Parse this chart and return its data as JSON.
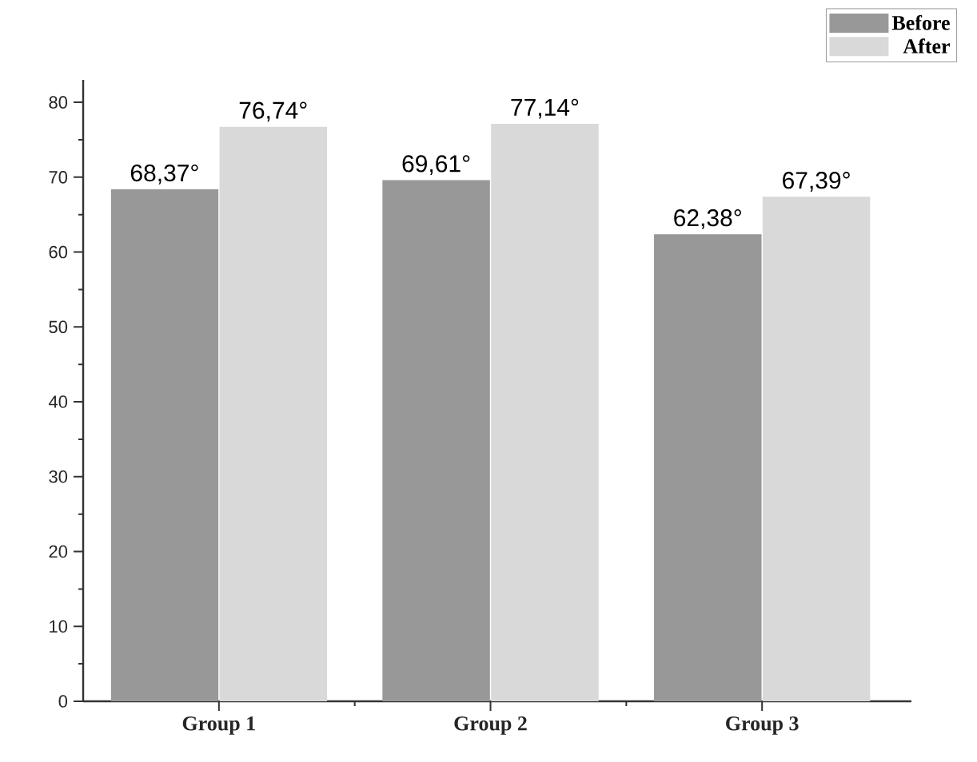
{
  "chart_data": {
    "type": "bar",
    "categories": [
      "Group 1",
      "Group 2",
      "Group 3"
    ],
    "series": [
      {
        "name": "Before",
        "color": "#989898",
        "values": [
          68.37,
          69.61,
          62.38
        ],
        "value_labels": [
          "68,37°",
          "69,61°",
          "62,38°"
        ]
      },
      {
        "name": "After",
        "color": "#d9d9d9",
        "values": [
          76.74,
          77.14,
          67.39
        ],
        "value_labels": [
          "76,74°",
          "77,14°",
          "67,39°"
        ]
      }
    ],
    "ylim": [
      0,
      83
    ],
    "yticks": [
      0,
      10,
      20,
      30,
      40,
      50,
      60,
      70,
      80
    ],
    "grid": false,
    "legend": "top right"
  }
}
